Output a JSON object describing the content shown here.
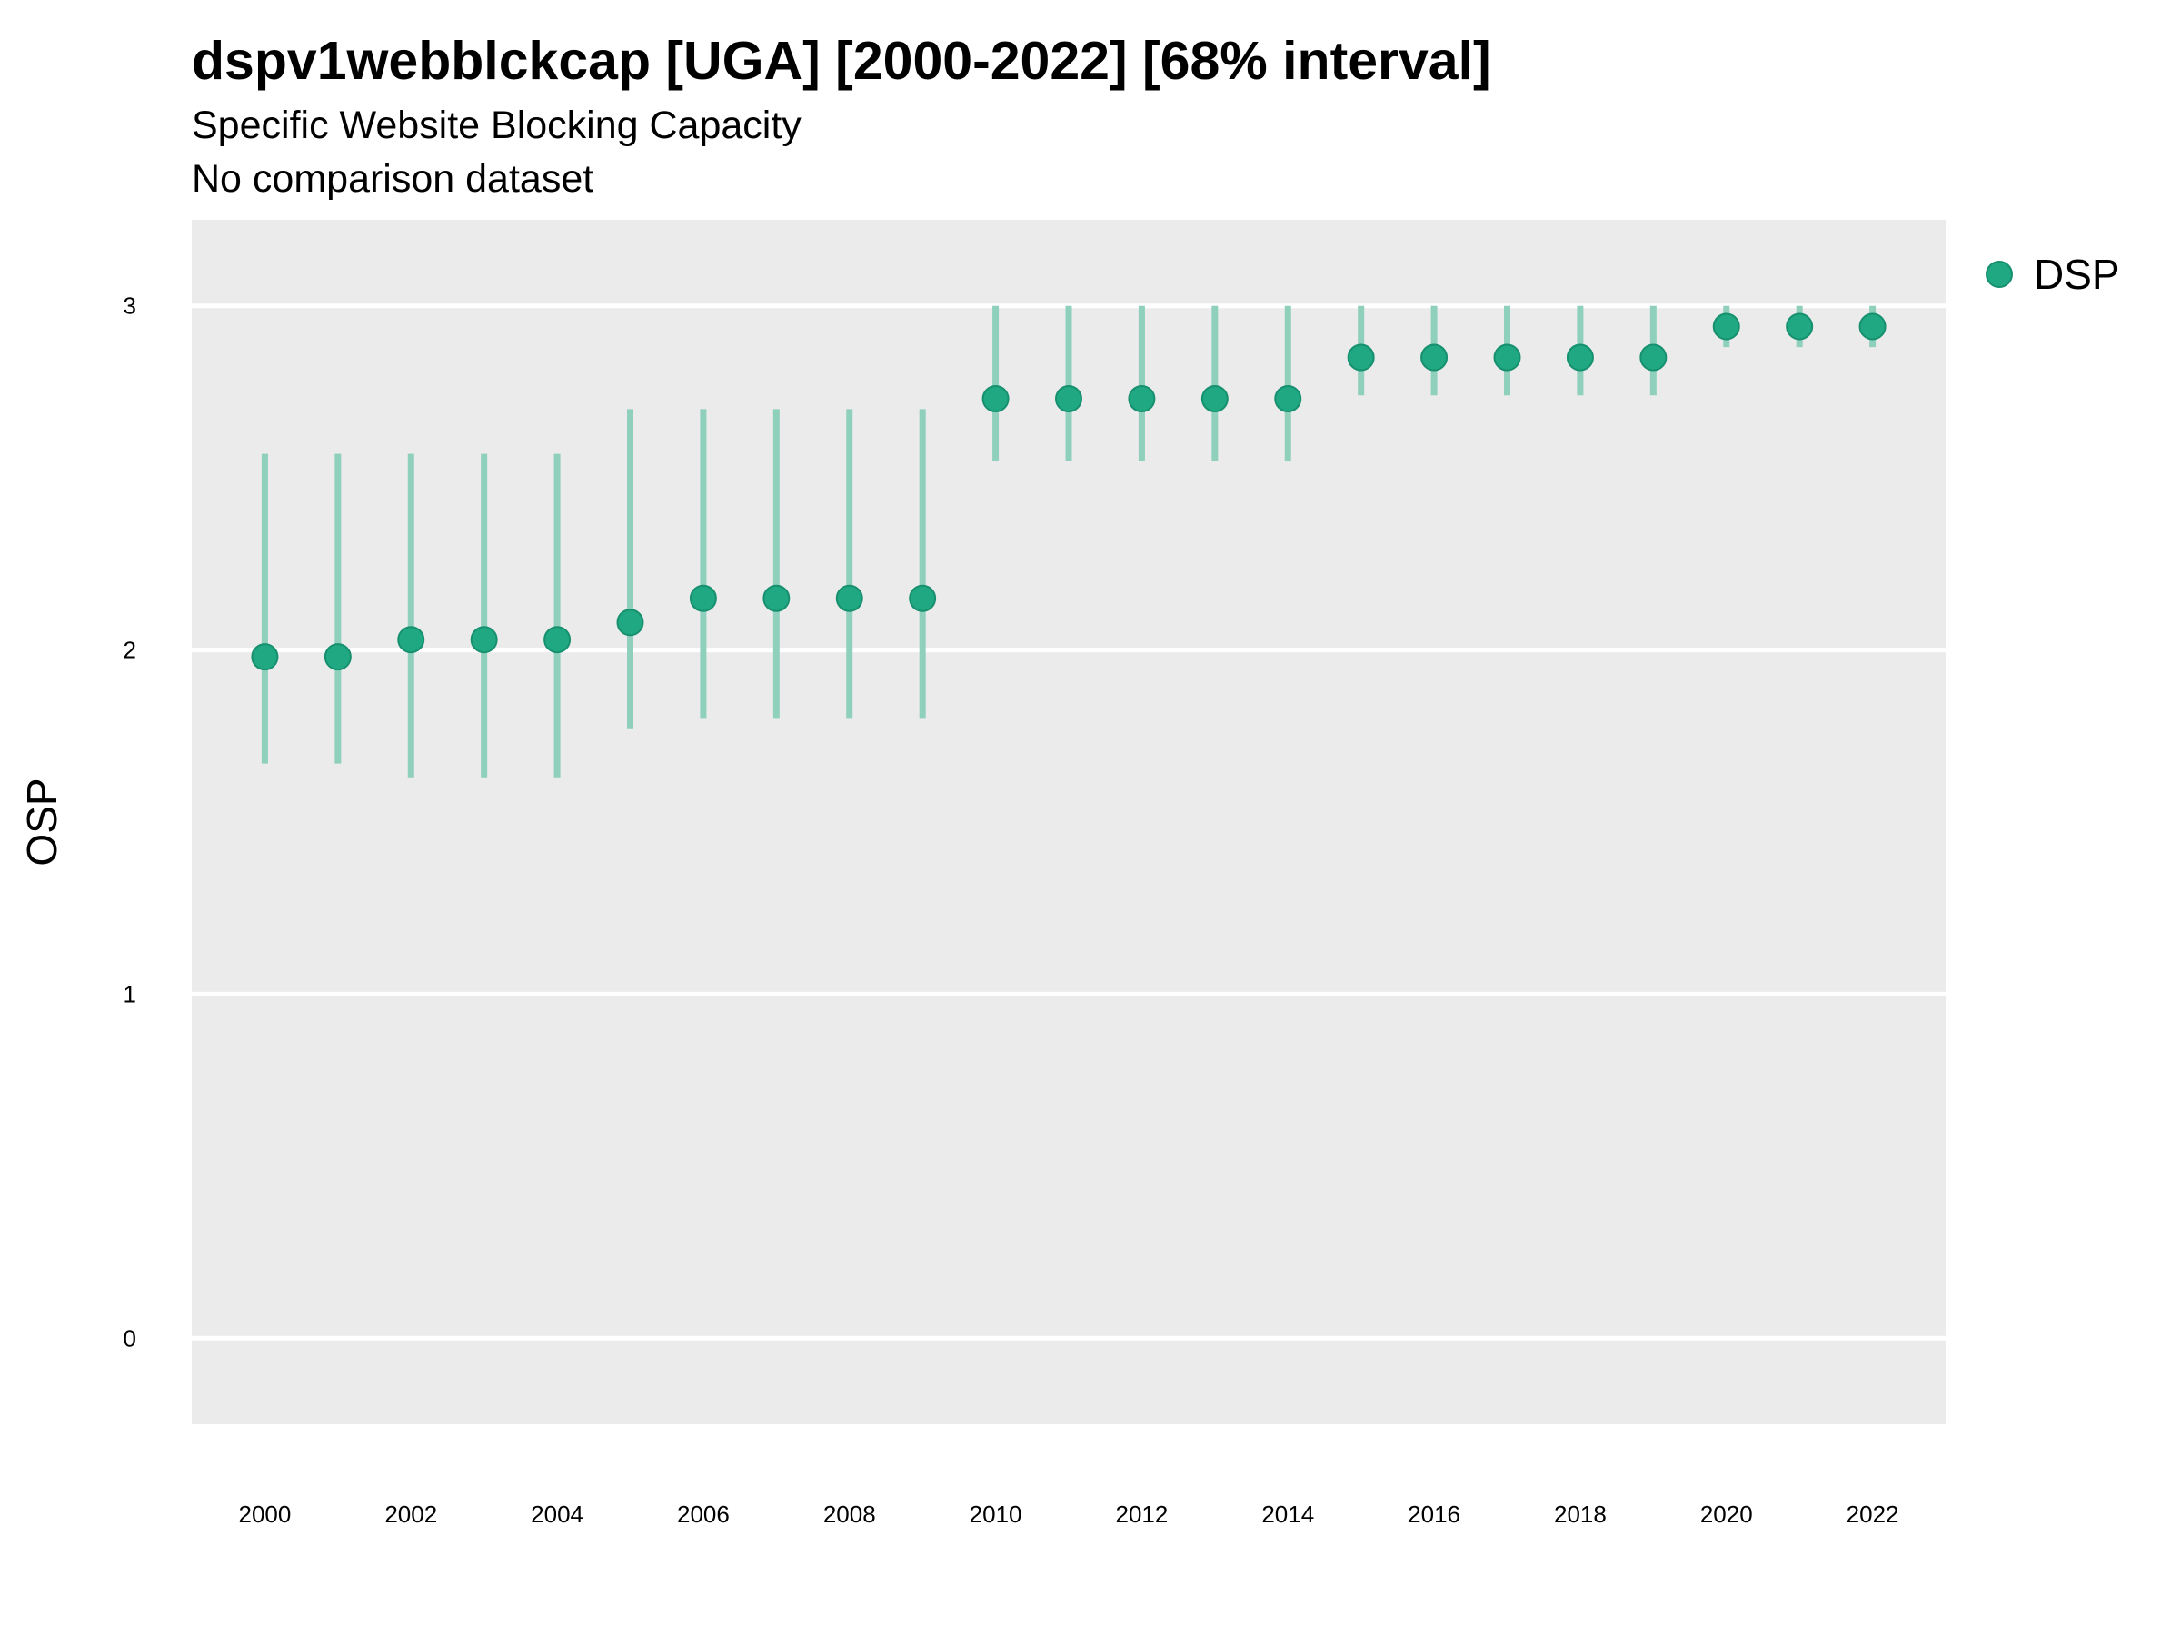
{
  "title": "dspv1webblckcap [UGA] [2000-2022] [68% interval]",
  "subtitle": "Specific Website Blocking Capacity",
  "subtitle2": "No comparison dataset",
  "colors": {
    "panel": "#EBEBEB",
    "grid": "#FFFFFF",
    "series": "#1FA882",
    "interval": "#8ED0BC"
  },
  "chart_data": {
    "type": "scatter",
    "title": "dspv1webblckcap [UGA] [2000-2022] [68% interval]",
    "xlabel": "",
    "ylabel": "OSP",
    "xlim": [
      1999.0,
      2023.0
    ],
    "ylim": [
      -0.25,
      3.25
    ],
    "xticks": [
      "2000",
      "2002",
      "2004",
      "2006",
      "2008",
      "2010",
      "2012",
      "2014",
      "2016",
      "2018",
      "2020",
      "2022"
    ],
    "yticks": [
      "0",
      "1",
      "2",
      "3"
    ],
    "legend": {
      "position": "top-right",
      "entries": [
        "DSP"
      ]
    },
    "grid": true,
    "series": [
      {
        "name": "DSP",
        "x": [
          2000,
          2001,
          2002,
          2003,
          2004,
          2005,
          2006,
          2007,
          2008,
          2009,
          2010,
          2011,
          2012,
          2013,
          2014,
          2015,
          2016,
          2017,
          2018,
          2019,
          2020,
          2021,
          2022
        ],
        "y": [
          1.98,
          1.98,
          2.03,
          2.03,
          2.03,
          2.08,
          2.15,
          2.15,
          2.15,
          2.15,
          2.73,
          2.73,
          2.73,
          2.73,
          2.73,
          2.85,
          2.85,
          2.85,
          2.85,
          2.85,
          2.94,
          2.94,
          2.94
        ],
        "lower": [
          1.67,
          1.67,
          1.63,
          1.63,
          1.63,
          1.77,
          1.8,
          1.8,
          1.8,
          1.8,
          2.55,
          2.55,
          2.55,
          2.55,
          2.55,
          2.74,
          2.74,
          2.74,
          2.74,
          2.74,
          2.88,
          2.88,
          2.88
        ],
        "upper": [
          2.57,
          2.57,
          2.57,
          2.57,
          2.57,
          2.7,
          2.7,
          2.7,
          2.7,
          2.7,
          3.0,
          3.0,
          3.0,
          3.0,
          3.0,
          3.0,
          3.0,
          3.0,
          3.0,
          3.0,
          3.0,
          3.0,
          3.0
        ]
      }
    ]
  }
}
